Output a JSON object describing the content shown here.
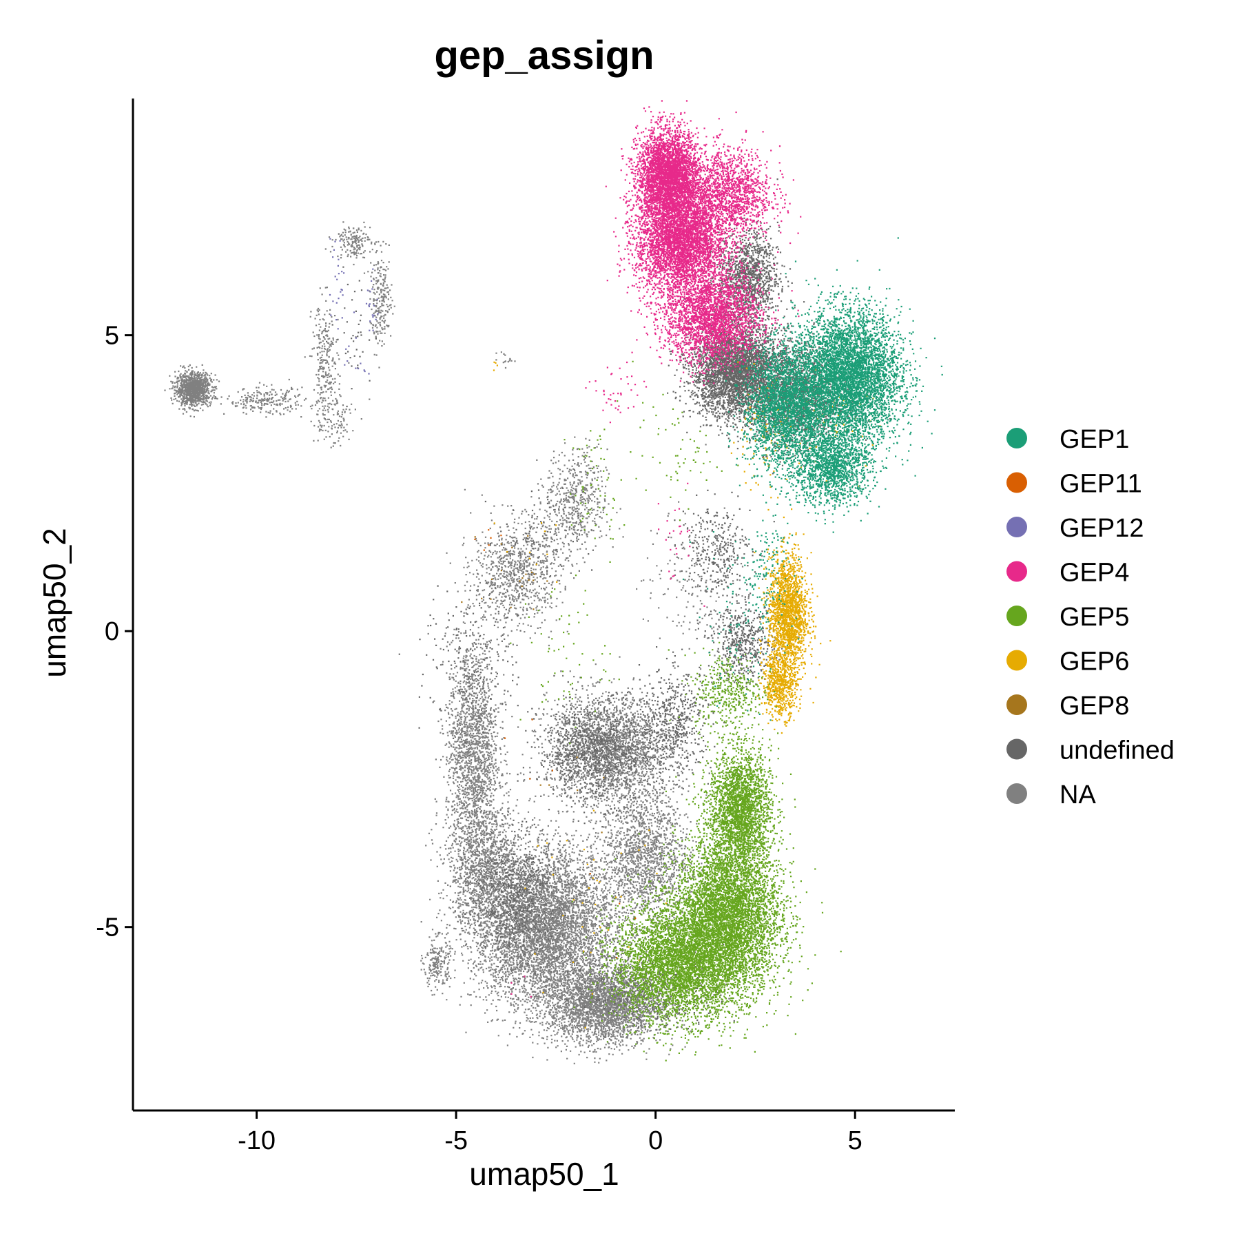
{
  "chart_data": {
    "type": "scatter",
    "title": "gep_assign",
    "xlabel": "umap50_1",
    "ylabel": "umap50_2",
    "xlim": [
      -13.1,
      7.5
    ],
    "ylim": [
      -8.1,
      9.0
    ],
    "x_ticks": [
      -10,
      -5,
      0,
      5
    ],
    "x_tick_labels": [
      "-10",
      "-5",
      "0",
      "5"
    ],
    "y_ticks": [
      -5,
      0,
      5
    ],
    "y_tick_labels": [
      "-5",
      "0",
      "5"
    ],
    "grid": false,
    "legend_position": "right",
    "series": [
      {
        "name": "GEP1",
        "color": "#1B9E77",
        "clusters": [
          [
            4.8,
            4.3,
            1.2,
            1.0,
            9000
          ],
          [
            3.2,
            3.8,
            0.9,
            0.9,
            2500
          ],
          [
            4.4,
            2.8,
            0.9,
            0.6,
            1500
          ],
          [
            2.8,
            1.0,
            0.6,
            0.9,
            150
          ],
          [
            2.0,
            0.0,
            1.0,
            1.2,
            80
          ]
        ]
      },
      {
        "name": "GEP11",
        "color": "#D95F02",
        "clusters": [
          [
            -4.0,
            1.4,
            0.4,
            0.4,
            6
          ],
          [
            -2.8,
            -2.5,
            0.8,
            0.8,
            4
          ],
          [
            -1.2,
            -4.5,
            1.0,
            1.0,
            4
          ]
        ]
      },
      {
        "name": "GEP12",
        "color": "#7570B3",
        "clusters": [
          [
            -8.0,
            5.8,
            0.18,
            0.8,
            25
          ],
          [
            -7.1,
            5.6,
            0.18,
            0.8,
            20
          ],
          [
            -7.6,
            4.6,
            0.3,
            0.3,
            10
          ]
        ]
      },
      {
        "name": "GEP4",
        "color": "#E7298A",
        "clusters": [
          [
            0.3,
            7.7,
            0.7,
            0.7,
            3500
          ],
          [
            0.6,
            6.6,
            1.0,
            0.8,
            4000
          ],
          [
            1.4,
            5.3,
            1.1,
            0.7,
            2500
          ],
          [
            1.8,
            7.4,
            1.0,
            0.7,
            1500
          ],
          [
            -1.0,
            4.0,
            0.6,
            0.5,
            40
          ],
          [
            0.5,
            1.6,
            0.5,
            0.7,
            25
          ],
          [
            -3.5,
            -6.0,
            0.6,
            0.3,
            4
          ]
        ]
      },
      {
        "name": "GEP5",
        "color": "#66A61E",
        "clusters": [
          [
            1.8,
            -4.8,
            1.2,
            1.2,
            6500
          ],
          [
            0.5,
            -5.6,
            1.4,
            0.9,
            4000
          ],
          [
            2.1,
            -3.0,
            0.7,
            0.9,
            2500
          ],
          [
            1.8,
            -1.0,
            0.8,
            0.6,
            400
          ],
          [
            -1.5,
            2.4,
            0.6,
            1.0,
            60
          ],
          [
            -2.3,
            -0.4,
            1.0,
            1.2,
            60
          ],
          [
            0.5,
            3.0,
            1.0,
            0.8,
            60
          ]
        ]
      },
      {
        "name": "GEP6",
        "color": "#E6AB02",
        "clusters": [
          [
            3.3,
            0.3,
            0.45,
            0.9,
            1800
          ],
          [
            3.1,
            -0.9,
            0.4,
            0.5,
            600
          ],
          [
            2.7,
            3.3,
            0.8,
            0.8,
            120
          ],
          [
            4.5,
            3.6,
            1.0,
            0.8,
            60
          ],
          [
            -1.5,
            -4.5,
            1.5,
            1.2,
            40
          ],
          [
            -4.0,
            4.5,
            0.15,
            0.1,
            4
          ],
          [
            -3.0,
            1.5,
            0.8,
            0.8,
            10
          ]
        ]
      },
      {
        "name": "GEP8",
        "color": "#A6761D",
        "clusters": [
          [
            -3.6,
            1.0,
            0.7,
            0.6,
            20
          ],
          [
            -2.0,
            -3.0,
            1.0,
            1.0,
            6
          ]
        ]
      },
      {
        "name": "undefined",
        "color": "#666666",
        "clusters": [
          [
            2.0,
            4.4,
            1.0,
            0.7,
            3500
          ],
          [
            2.3,
            6.0,
            0.7,
            0.7,
            1200
          ],
          [
            3.5,
            4.0,
            1.0,
            0.8,
            1500
          ],
          [
            -1.5,
            -2.0,
            1.3,
            0.8,
            900
          ],
          [
            0.5,
            -1.5,
            0.8,
            0.8,
            500
          ],
          [
            2.2,
            -0.2,
            0.7,
            0.6,
            500
          ],
          [
            1.5,
            1.4,
            0.8,
            0.7,
            300
          ],
          [
            -3.5,
            -4.5,
            1.0,
            1.0,
            600
          ],
          [
            0.0,
            -6.0,
            1.5,
            0.6,
            400
          ],
          [
            -4.5,
            -0.5,
            1.2,
            1.2,
            200
          ],
          [
            -3.0,
            1.5,
            0.9,
            0.8,
            120
          ],
          [
            -7.6,
            5.0,
            0.5,
            1.0,
            40
          ]
        ]
      },
      {
        "name": "NA",
        "color": "#808080",
        "clusters": [
          [
            -11.6,
            4.1,
            0.4,
            0.25,
            1100
          ],
          [
            -9.8,
            3.9,
            0.9,
            0.2,
            220
          ],
          [
            -8.3,
            4.5,
            0.3,
            1.0,
            260
          ],
          [
            -6.9,
            5.6,
            0.25,
            0.7,
            220
          ],
          [
            -7.6,
            6.6,
            0.4,
            0.25,
            160
          ],
          [
            -8.1,
            3.6,
            0.5,
            0.5,
            90
          ],
          [
            -3.5,
            1.0,
            1.0,
            0.8,
            800
          ],
          [
            -2.0,
            2.2,
            0.7,
            0.8,
            500
          ],
          [
            -4.6,
            -2.0,
            0.6,
            1.7,
            1800
          ],
          [
            -2.8,
            -5.0,
            1.6,
            1.2,
            6500
          ],
          [
            -1.3,
            -6.3,
            1.3,
            0.6,
            2800
          ],
          [
            -1.2,
            -2.0,
            1.4,
            0.8,
            2200
          ],
          [
            -4.3,
            -4.0,
            0.8,
            1.0,
            1200
          ],
          [
            -5.5,
            -5.6,
            0.3,
            0.4,
            200
          ],
          [
            -0.3,
            -3.8,
            1.0,
            1.0,
            1500
          ],
          [
            -3.8,
            4.6,
            0.25,
            0.1,
            15
          ],
          [
            1.0,
            0.8,
            1.2,
            1.2,
            200
          ]
        ]
      }
    ]
  }
}
